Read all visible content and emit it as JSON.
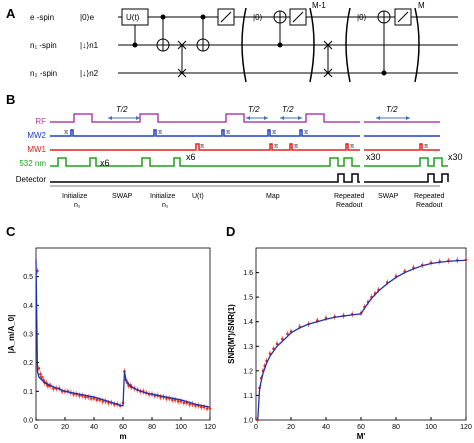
{
  "panel_labels": {
    "a": "A",
    "b": "B",
    "c": "C",
    "d": "D"
  },
  "circuit": {
    "labels": [
      "e -spin",
      "n₁ -spin",
      "n₂ -spin"
    ],
    "kets": [
      "|0⟩e",
      "|↓⟩n1",
      "|↓⟩n2"
    ],
    "gate": "U(t)",
    "repeat1": "M-1",
    "repeat2": "M",
    "ket0": "|0⟩"
  },
  "sequence": {
    "channels": [
      {
        "name": "RF",
        "color": "#b040b0"
      },
      {
        "name": "MW2",
        "color": "#2040c0"
      },
      {
        "name": "MW1",
        "color": "#e02020"
      },
      {
        "name": "532 nm",
        "color": "#20a020"
      },
      {
        "name": "Detector",
        "color": "#000000"
      }
    ],
    "half_period": "T/2",
    "pi": "π",
    "x6": "x6",
    "x30": "x30",
    "stages": [
      "Initialize\nn₁",
      "SWAP",
      "Initialize\nn₁",
      "U(t)",
      "Map",
      "Repeated\nReadout",
      "SWAP",
      "Repeated\nReadout"
    ]
  },
  "chart_data": [
    {
      "panel": "C",
      "type": "scatter",
      "xlabel": "m",
      "ylabel": "|A_m/A_0|",
      "xlim": [
        0,
        120
      ],
      "ylim": [
        0,
        0.6
      ],
      "xticks": [
        0,
        20,
        40,
        60,
        80,
        100,
        120
      ],
      "yticks": [
        0.0,
        0.1,
        0.2,
        0.3,
        0.4,
        0.5
      ],
      "series": [
        {
          "kind": "data",
          "color": "#e03020",
          "x": [
            1,
            2,
            3,
            4,
            5,
            6,
            7,
            8,
            9,
            10,
            12,
            14,
            16,
            18,
            20,
            22,
            24,
            26,
            28,
            30,
            32,
            34,
            36,
            38,
            40,
            42,
            44,
            46,
            48,
            50,
            52,
            54,
            56,
            58,
            60,
            61,
            62,
            63,
            64,
            65,
            66,
            68,
            70,
            72,
            74,
            76,
            78,
            80,
            82,
            84,
            86,
            88,
            90,
            92,
            94,
            96,
            98,
            100,
            102,
            104,
            106,
            108,
            110,
            112,
            114,
            116,
            118,
            120
          ],
          "y": [
            0.52,
            0.18,
            0.16,
            0.15,
            0.14,
            0.13,
            0.13,
            0.12,
            0.12,
            0.12,
            0.11,
            0.11,
            0.11,
            0.1,
            0.1,
            0.1,
            0.095,
            0.09,
            0.09,
            0.085,
            0.085,
            0.08,
            0.08,
            0.075,
            0.075,
            0.07,
            0.07,
            0.065,
            0.065,
            0.06,
            0.06,
            0.055,
            0.055,
            0.05,
            0.06,
            0.17,
            0.14,
            0.13,
            0.12,
            0.12,
            0.115,
            0.11,
            0.105,
            0.1,
            0.1,
            0.095,
            0.09,
            0.09,
            0.085,
            0.085,
            0.08,
            0.08,
            0.075,
            0.075,
            0.07,
            0.07,
            0.065,
            0.065,
            0.06,
            0.06,
            0.055,
            0.055,
            0.05,
            0.05,
            0.045,
            0.045,
            0.04,
            0.04
          ]
        },
        {
          "kind": "fit",
          "color": "#2030b0",
          "x": [
            0,
            1,
            2,
            4,
            6,
            10,
            15,
            20,
            30,
            40,
            50,
            59,
            60,
            61,
            62,
            64,
            66,
            70,
            75,
            80,
            90,
            100,
            110,
            120
          ],
          "y": [
            0.56,
            0.17,
            0.15,
            0.14,
            0.13,
            0.12,
            0.11,
            0.1,
            0.09,
            0.08,
            0.065,
            0.05,
            0.05,
            0.17,
            0.14,
            0.125,
            0.115,
            0.105,
            0.095,
            0.09,
            0.08,
            0.07,
            0.055,
            0.045
          ]
        }
      ]
    },
    {
      "panel": "D",
      "type": "line",
      "xlabel": "M'",
      "ylabel": "SNR(M')/SNR(1)",
      "xlim": [
        0,
        120
      ],
      "ylim": [
        1.0,
        1.7
      ],
      "xticks": [
        0,
        20,
        40,
        60,
        80,
        100,
        120
      ],
      "yticks": [
        1.0,
        1.1,
        1.2,
        1.3,
        1.4,
        1.5,
        1.6
      ],
      "series": [
        {
          "kind": "data",
          "color": "#e03020",
          "x": [
            1,
            2,
            3,
            4,
            5,
            6,
            8,
            10,
            12,
            15,
            18,
            20,
            25,
            30,
            35,
            40,
            45,
            50,
            55,
            60,
            62,
            64,
            66,
            68,
            70,
            75,
            80,
            85,
            90,
            95,
            100,
            105,
            110,
            115,
            120
          ],
          "y": [
            1.0,
            1.13,
            1.17,
            1.2,
            1.22,
            1.24,
            1.27,
            1.29,
            1.31,
            1.33,
            1.35,
            1.36,
            1.38,
            1.39,
            1.405,
            1.415,
            1.42,
            1.425,
            1.43,
            1.435,
            1.46,
            1.48,
            1.5,
            1.515,
            1.53,
            1.56,
            1.585,
            1.605,
            1.62,
            1.63,
            1.64,
            1.645,
            1.648,
            1.65,
            1.652
          ]
        },
        {
          "kind": "fit",
          "color": "#2030b0",
          "x": [
            1,
            2,
            3,
            4,
            5,
            6,
            8,
            10,
            12,
            15,
            18,
            20,
            25,
            30,
            35,
            40,
            45,
            50,
            55,
            60,
            62,
            64,
            66,
            68,
            70,
            75,
            80,
            85,
            90,
            95,
            100,
            105,
            110,
            115,
            120
          ],
          "y": [
            1.0,
            1.12,
            1.16,
            1.19,
            1.21,
            1.23,
            1.26,
            1.28,
            1.3,
            1.32,
            1.34,
            1.355,
            1.375,
            1.39,
            1.4,
            1.41,
            1.418,
            1.423,
            1.428,
            1.432,
            1.455,
            1.475,
            1.495,
            1.51,
            1.525,
            1.555,
            1.58,
            1.6,
            1.615,
            1.628,
            1.637,
            1.642,
            1.646,
            1.648,
            1.65
          ]
        }
      ]
    }
  ]
}
